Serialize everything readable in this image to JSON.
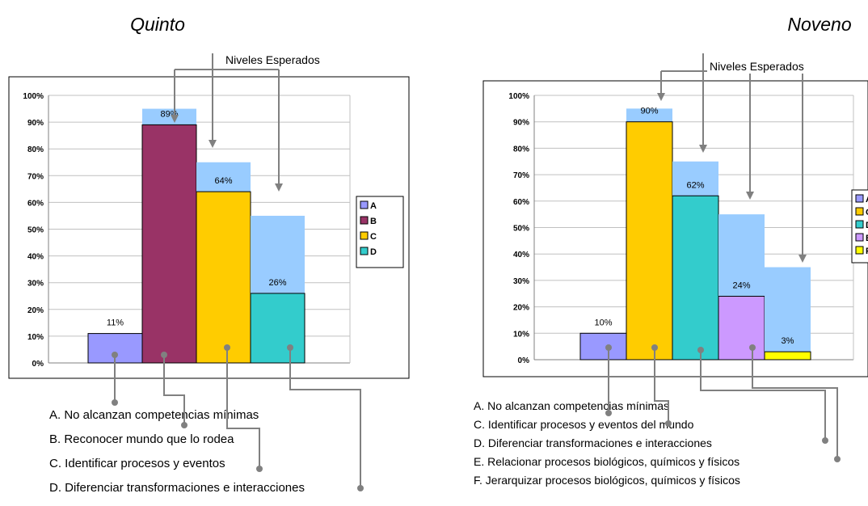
{
  "chart_data": [
    {
      "type": "bar",
      "title": "Quinto",
      "annotation": "Niveles Esperados",
      "ylim": [
        0,
        1
      ],
      "yticks": [
        "0%",
        "10%",
        "20%",
        "30%",
        "40%",
        "50%",
        "60%",
        "70%",
        "80%",
        "90%",
        "100%"
      ],
      "grid": true,
      "legend_position": "right",
      "series": [
        {
          "name": "A",
          "color": "#9999FF",
          "value": 0.11,
          "label": "11%",
          "expected": null
        },
        {
          "name": "B",
          "color": "#993366",
          "value": 0.89,
          "label": "89%",
          "expected": 0.95
        },
        {
          "name": "C",
          "color": "#FFCC00",
          "value": 0.64,
          "label": "64%",
          "expected": 0.75
        },
        {
          "name": "D",
          "color": "#33CCCC",
          "value": 0.26,
          "label": "26%",
          "expected": 0.55
        }
      ],
      "descriptions": [
        "A. No alcanzan competencias mínimas",
        "B. Reconocer mundo que lo rodea",
        "C. Identificar procesos y eventos",
        "D. Diferenciar transformaciones e interacciones"
      ]
    },
    {
      "type": "bar",
      "title": "Noveno",
      "annotation": "Niveles Esperados",
      "ylim": [
        0,
        1
      ],
      "yticks": [
        "0%",
        "10%",
        "20%",
        "30%",
        "40%",
        "50%",
        "60%",
        "70%",
        "80%",
        "90%",
        "100%"
      ],
      "grid": true,
      "legend_position": "right",
      "series": [
        {
          "name": "A",
          "color": "#9999FF",
          "value": 0.1,
          "label": "10%",
          "expected": null
        },
        {
          "name": "C",
          "color": "#FFCC00",
          "value": 0.9,
          "label": "90%",
          "expected": 0.95
        },
        {
          "name": "D",
          "color": "#33CCCC",
          "value": 0.62,
          "label": "62%",
          "expected": 0.75
        },
        {
          "name": "E",
          "color": "#CC99FF",
          "value": 0.24,
          "label": "24%",
          "expected": 0.55
        },
        {
          "name": "F",
          "color": "#FFFF00",
          "value": 0.03,
          "label": "3%",
          "expected": 0.35
        }
      ],
      "descriptions": [
        "A. No alcanzan competencias mínimas",
        "C. Identificar procesos y eventos del mundo",
        "D. Diferenciar transformaciones e interacciones",
        "E. Relacionar procesos biológicos, químicos y físicos",
        "F. Jerarquizar procesos biológicos, químicos y físicos"
      ]
    }
  ],
  "colors": {
    "expected_fill": "#99CCFF",
    "connector": "#808080",
    "grid": "#C0C0C0"
  }
}
